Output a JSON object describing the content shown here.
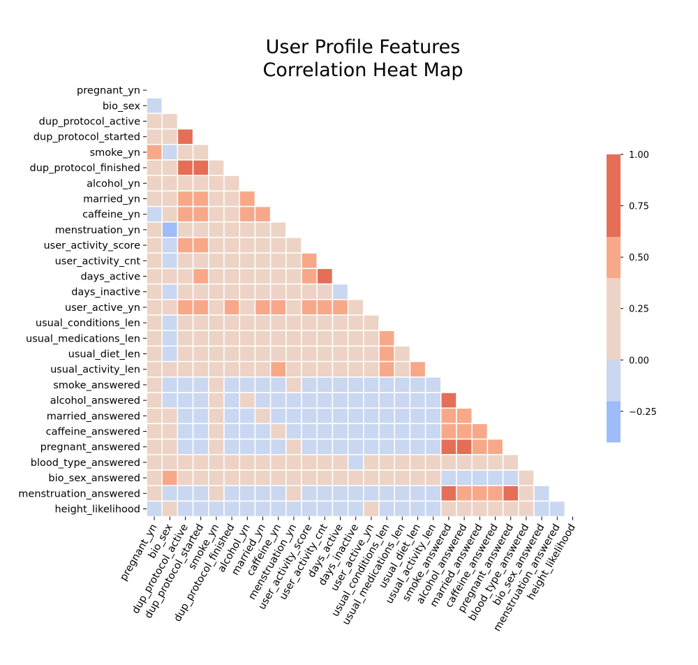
{
  "chart_data": {
    "type": "heatmap",
    "title_lines": [
      "User Profile Features",
      "Correlation Heat Map"
    ],
    "variables": [
      "pregnant_yn",
      "bio_sex",
      "dup_protocol_active",
      "dup_protocol_started",
      "smoke_yn",
      "dup_protocol_finished",
      "alcohol_yn",
      "married_yn",
      "caffeine_yn",
      "menstruation_yn",
      "user_activity_score",
      "user_activity_cnt",
      "days_active",
      "days_inactive",
      "user_active_yn",
      "usual_conditions_len",
      "usual_medications_len",
      "usual_diet_len",
      "usual_activity_len",
      "smoke_answered",
      "alcohol_answered",
      "married_answered",
      "caffeine_answered",
      "pregnant_answered",
      "blood_type_answered",
      "bio_sex_answered",
      "menstruation_answered",
      "height_likelihood"
    ],
    "mask": "upper-triangle-including-diagonal",
    "lower_triangle_values": [
      [],
      [
        -0.1
      ],
      [
        0.1,
        0.1
      ],
      [
        0.1,
        0.1,
        0.85
      ],
      [
        0.55,
        -0.1,
        0.1,
        0.1
      ],
      [
        0.1,
        0.1,
        0.85,
        0.85,
        0.1
      ],
      [
        0.1,
        0.1,
        0.1,
        0.1,
        0.1,
        0.1
      ],
      [
        0.1,
        0.1,
        0.55,
        0.55,
        0.1,
        0.1,
        0.55
      ],
      [
        -0.1,
        0.1,
        0.55,
        0.55,
        0.1,
        0.1,
        0.55,
        0.55
      ],
      [
        0.1,
        -0.35,
        0.1,
        0.1,
        0.1,
        0.1,
        0.1,
        0.1,
        0.1
      ],
      [
        0.1,
        -0.1,
        0.55,
        0.55,
        0.1,
        0.1,
        0.1,
        0.1,
        0.1,
        0.1
      ],
      [
        0.1,
        -0.1,
        0.1,
        0.1,
        0.1,
        0.1,
        0.1,
        0.1,
        0.1,
        0.1,
        0.55
      ],
      [
        0.1,
        0.1,
        0.1,
        0.55,
        0.1,
        0.1,
        0.1,
        0.1,
        0.1,
        0.1,
        0.55,
        0.85
      ],
      [
        0.1,
        -0.1,
        0.1,
        0.1,
        0.1,
        0.1,
        0.1,
        0.1,
        0.1,
        0.1,
        0.1,
        0.1,
        -0.1
      ],
      [
        0.1,
        0.1,
        0.55,
        0.55,
        0.1,
        0.55,
        0.1,
        0.55,
        0.55,
        0.1,
        0.55,
        0.55,
        0.55,
        0.1
      ],
      [
        0.1,
        -0.1,
        0.1,
        0.1,
        0.1,
        0.1,
        0.1,
        0.1,
        0.1,
        0.1,
        0.1,
        0.1,
        0.1,
        0.1,
        0.1
      ],
      [
        0.1,
        -0.1,
        0.1,
        0.1,
        0.1,
        0.1,
        0.1,
        0.1,
        0.1,
        0.1,
        0.1,
        0.1,
        0.1,
        0.1,
        0.1,
        0.55
      ],
      [
        0.1,
        -0.1,
        0.1,
        0.1,
        0.1,
        0.1,
        0.1,
        0.1,
        0.1,
        0.1,
        0.1,
        0.1,
        0.1,
        0.1,
        0.1,
        0.55,
        0.1
      ],
      [
        0.1,
        0.1,
        0.1,
        0.1,
        0.1,
        0.1,
        0.1,
        0.1,
        0.55,
        0.1,
        0.1,
        0.1,
        0.1,
        0.1,
        0.1,
        0.55,
        0.1,
        0.55
      ],
      [
        0.1,
        -0.1,
        -0.1,
        -0.1,
        0.1,
        -0.1,
        -0.1,
        -0.1,
        -0.1,
        0.1,
        -0.1,
        -0.1,
        -0.1,
        -0.1,
        -0.1,
        -0.1,
        -0.1,
        -0.1,
        -0.1
      ],
      [
        0.1,
        -0.1,
        -0.1,
        -0.1,
        0.1,
        -0.1,
        0.1,
        -0.1,
        -0.1,
        -0.1,
        -0.1,
        -0.1,
        -0.1,
        -0.1,
        -0.1,
        -0.1,
        -0.1,
        -0.1,
        -0.1,
        0.85
      ],
      [
        0.1,
        0.1,
        -0.1,
        -0.1,
        0.1,
        -0.1,
        -0.1,
        0.1,
        -0.1,
        -0.1,
        -0.1,
        -0.1,
        -0.1,
        -0.1,
        -0.1,
        -0.1,
        -0.1,
        -0.1,
        -0.1,
        0.55,
        0.55
      ],
      [
        0.1,
        0.1,
        -0.1,
        -0.1,
        0.1,
        -0.1,
        -0.1,
        -0.1,
        0.1,
        -0.1,
        -0.1,
        -0.1,
        -0.1,
        -0.1,
        -0.1,
        -0.1,
        -0.1,
        -0.1,
        -0.1,
        0.55,
        0.55,
        0.55
      ],
      [
        0.1,
        0.1,
        -0.1,
        -0.1,
        0.1,
        -0.1,
        -0.1,
        -0.1,
        -0.1,
        0.1,
        -0.1,
        -0.1,
        -0.1,
        -0.1,
        -0.1,
        -0.1,
        -0.1,
        -0.1,
        -0.1,
        0.85,
        0.85,
        0.55,
        0.55
      ],
      [
        0.1,
        0.1,
        0.1,
        0.1,
        0.1,
        0.1,
        0.1,
        0.1,
        0.1,
        0.1,
        0.1,
        0.1,
        0.1,
        -0.1,
        0.1,
        0.1,
        0.1,
        0.1,
        0.1,
        0.1,
        0.1,
        0.1,
        0.1,
        0.1
      ],
      [
        0.1,
        0.55,
        0.1,
        0.1,
        0.1,
        0.1,
        0.1,
        0.1,
        0.1,
        0.1,
        0.1,
        0.1,
        0.1,
        0.1,
        0.1,
        0.1,
        0.1,
        0.1,
        0.1,
        -0.1,
        -0.1,
        -0.1,
        -0.1,
        -0.1,
        0.1
      ],
      [
        0.1,
        -0.1,
        -0.1,
        -0.1,
        0.1,
        -0.1,
        -0.1,
        -0.1,
        -0.1,
        0.1,
        -0.1,
        -0.1,
        -0.1,
        -0.1,
        -0.1,
        -0.1,
        -0.1,
        -0.1,
        -0.1,
        0.85,
        0.55,
        0.55,
        0.55,
        0.85,
        0.1,
        -0.1
      ],
      [
        -0.1,
        0.1,
        -0.1,
        -0.1,
        -0.1,
        -0.1,
        -0.1,
        -0.1,
        -0.1,
        -0.1,
        -0.1,
        -0.1,
        -0.1,
        -0.1,
        0.1,
        -0.1,
        -0.1,
        -0.1,
        -0.1,
        0.1,
        0.1,
        0.1,
        0.1,
        0.1,
        0.1,
        -0.1,
        -0.1
      ]
    ],
    "colorbar": {
      "range": [
        -0.4,
        1.0
      ],
      "bins": [
        {
          "from": -0.4,
          "to": -0.2,
          "color": "#9dbcf9"
        },
        {
          "from": -0.2,
          "to": 0.0,
          "color": "#c9d7f0"
        },
        {
          "from": 0.0,
          "to": 0.2,
          "color": "#ecd3c5"
        },
        {
          "from": 0.2,
          "to": 0.4,
          "color": "#ecd3c5"
        },
        {
          "from": 0.4,
          "to": 0.6,
          "color": "#f7a889"
        },
        {
          "from": 0.6,
          "to": 0.8,
          "color": "#e46e56"
        },
        {
          "from": 0.8,
          "to": 1.0,
          "color": "#e46e56"
        }
      ],
      "ticks": [
        -0.25,
        0.0,
        0.25,
        0.5,
        0.75,
        1.0
      ],
      "tick_labels": [
        "−0.25",
        "0.00",
        "0.25",
        "0.50",
        "0.75",
        "1.00"
      ]
    }
  }
}
